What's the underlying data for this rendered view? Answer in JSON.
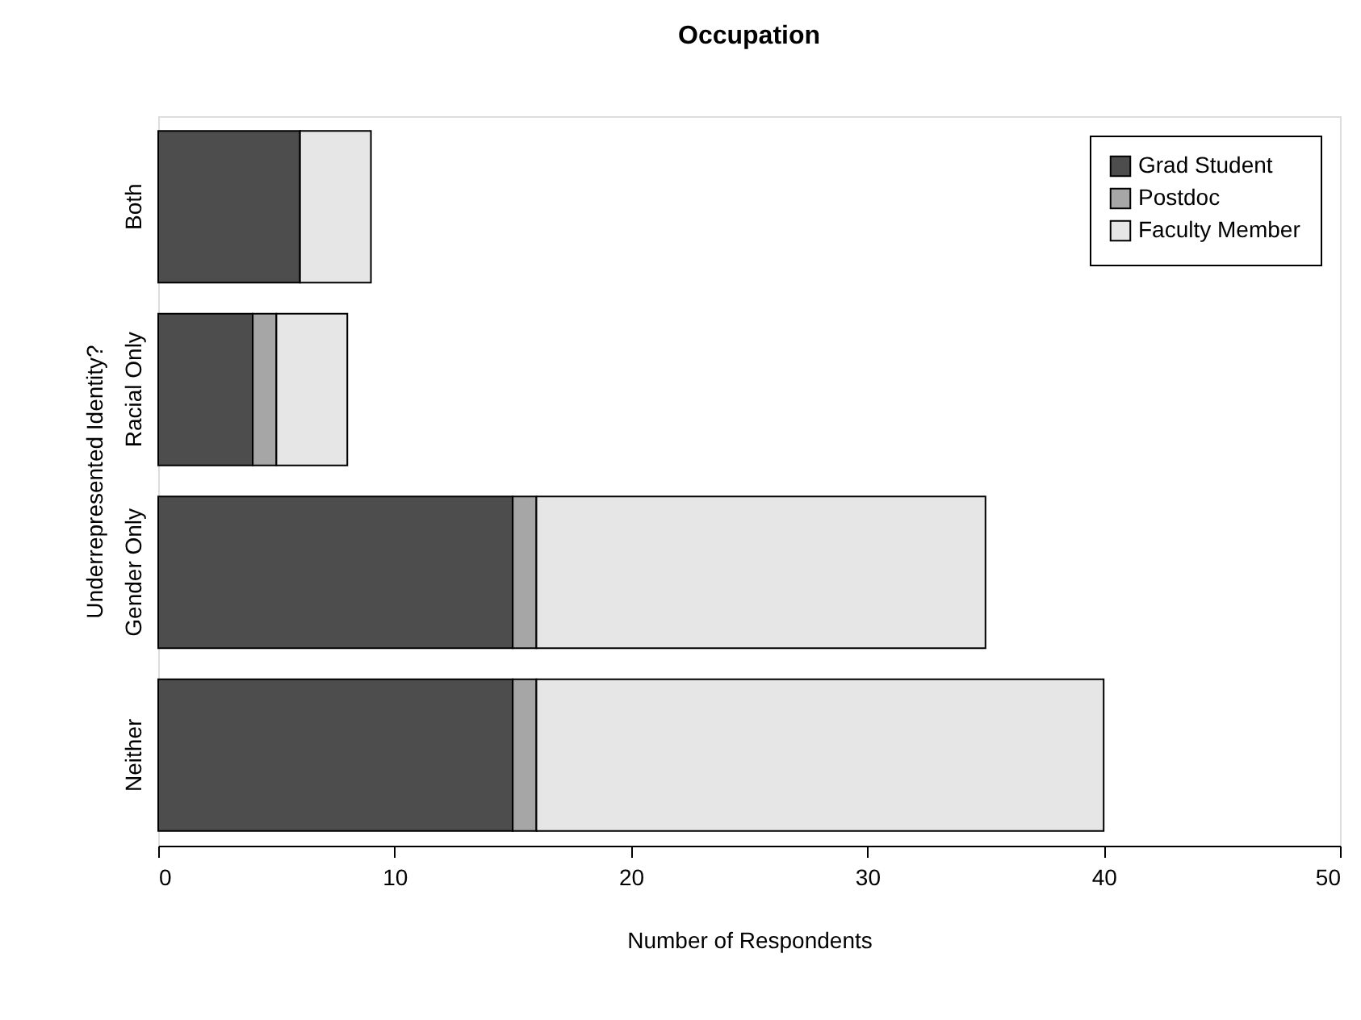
{
  "chart_data": {
    "type": "bar",
    "orientation": "horizontal",
    "stacked": true,
    "title": "Occupation",
    "xlabel": "Number of Respondents",
    "ylabel": "Underrepresented Identity?",
    "categories": [
      "Both",
      "Racial Only",
      "Gender Only",
      "Neither"
    ],
    "series": [
      {
        "name": "Grad Student",
        "color": "#4d4d4d",
        "values": [
          6,
          4,
          15,
          15
        ]
      },
      {
        "name": "Postdoc",
        "color": "#a6a6a6",
        "values": [
          0,
          1,
          1,
          1
        ]
      },
      {
        "name": "Faculty Member",
        "color": "#e6e6e6",
        "values": [
          3,
          3,
          19,
          24
        ]
      }
    ],
    "xlim": [
      0,
      50
    ],
    "xticks": [
      0,
      10,
      20,
      30,
      40,
      50
    ],
    "grid": false,
    "legend": "top right"
  }
}
